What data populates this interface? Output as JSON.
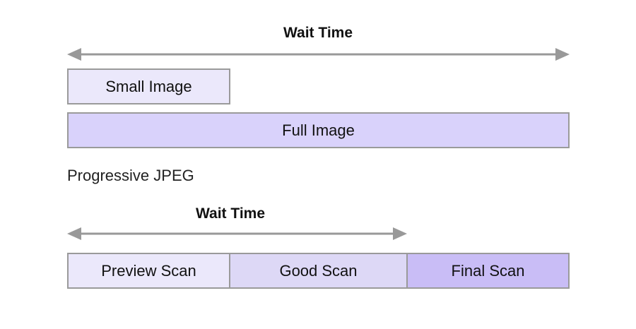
{
  "top": {
    "title": "Wait Time",
    "small_image_label": "Small Image",
    "full_image_label": "Full Image"
  },
  "section_label": "Progressive JPEG",
  "bottom": {
    "title": "Wait Time",
    "scans": [
      {
        "label": "Preview Scan"
      },
      {
        "label": "Good Scan"
      },
      {
        "label": "Final Scan"
      }
    ]
  },
  "colors": {
    "arrow": "#999999",
    "box_border": "#9a9a9a",
    "small_image_fill": "#ebe8fb",
    "full_image_fill": "#d9d2fb",
    "preview_scan_fill": "#ebe8fb",
    "good_scan_fill": "#ddd8f6",
    "final_scan_fill": "#c9bdf6"
  }
}
